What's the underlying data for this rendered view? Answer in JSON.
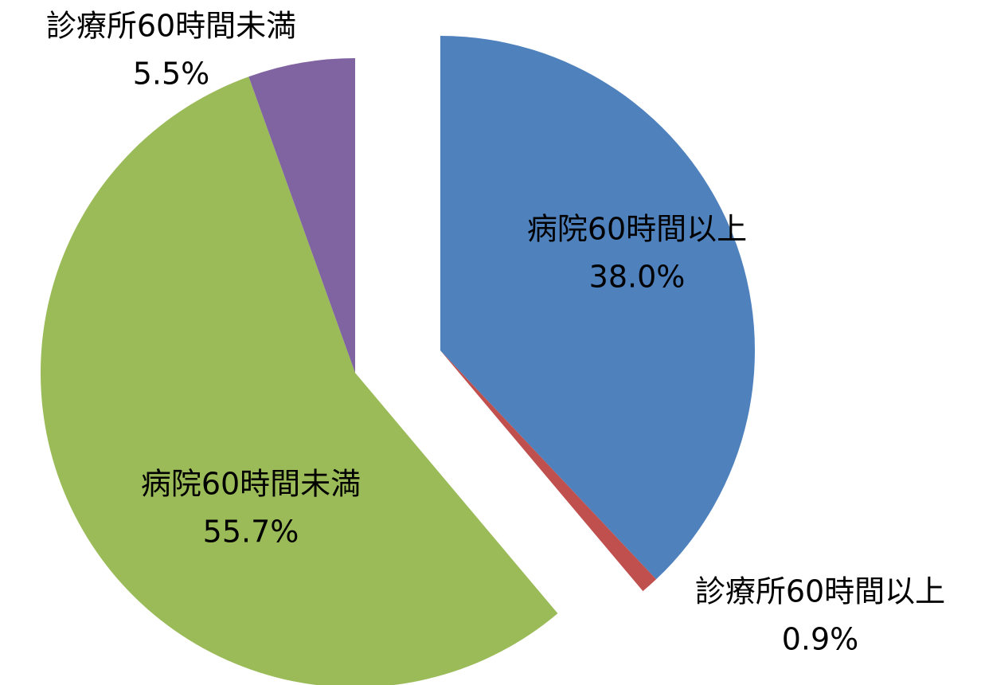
{
  "chart_data": {
    "type": "pie",
    "categories": [
      "病院60時間以上",
      "診療所60時間以上",
      "病院60時間未満",
      "診療所60時間未満"
    ],
    "values": [
      38.0,
      0.9,
      55.7,
      5.5
    ],
    "value_labels": [
      "38.0%",
      "0.9%",
      "55.7%",
      "5.5%"
    ],
    "colors": [
      "#4f81bd",
      "#c0504d",
      "#9bbb59",
      "#8064a2"
    ]
  }
}
